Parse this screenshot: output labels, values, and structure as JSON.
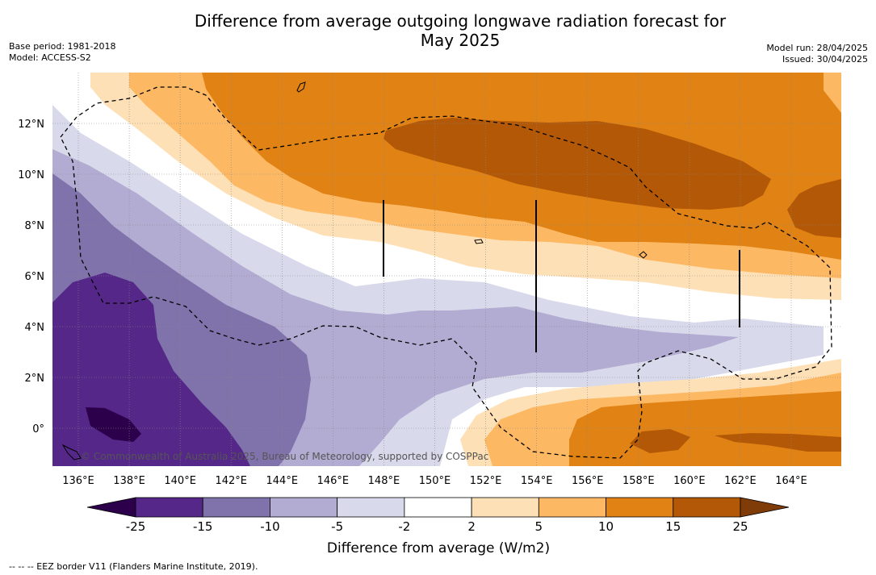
{
  "title_line1": "Difference from average outgoing longwave radiation forecast for",
  "title_line2": "May 2025",
  "base_period": "Base period: 1981-2018",
  "model": "Model: ACCESS-S2",
  "model_run": "Model run: 28/04/2025",
  "issued": "Issued: 30/04/2025",
  "credit": "© Commonwealth of Australia 2025, Bureau of Meteorology, supported by COSPPac",
  "footer_legend": "--  --  -- EEZ border V11 (Flanders Marine Institute, 2019).",
  "map": {
    "lon_labels": [
      "136°E",
      "138°E",
      "140°E",
      "142°E",
      "144°E",
      "146°E",
      "148°E",
      "150°E",
      "152°E",
      "154°E",
      "156°E",
      "158°E",
      "160°E",
      "162°E",
      "164°E"
    ],
    "lat_labels": [
      "12°N",
      "10°N",
      "8°N",
      "6°N",
      "4°N",
      "2°N",
      "0°"
    ],
    "lon_range": [
      135,
      166
    ],
    "lat_range": [
      -1.5,
      14
    ]
  },
  "colorbar": {
    "title": "Difference from average (W/m2)",
    "ticks": [
      "-25",
      "-15",
      "-10",
      "-5",
      "-2",
      "2",
      "5",
      "10",
      "15",
      "25"
    ],
    "colors": [
      "#2d004b",
      "#542788",
      "#8073ac",
      "#b2abd2",
      "#d8daeb",
      "#ffffff",
      "#fee0b6",
      "#fdb863",
      "#e08214",
      "#b35806",
      "#7f3b08"
    ]
  }
}
